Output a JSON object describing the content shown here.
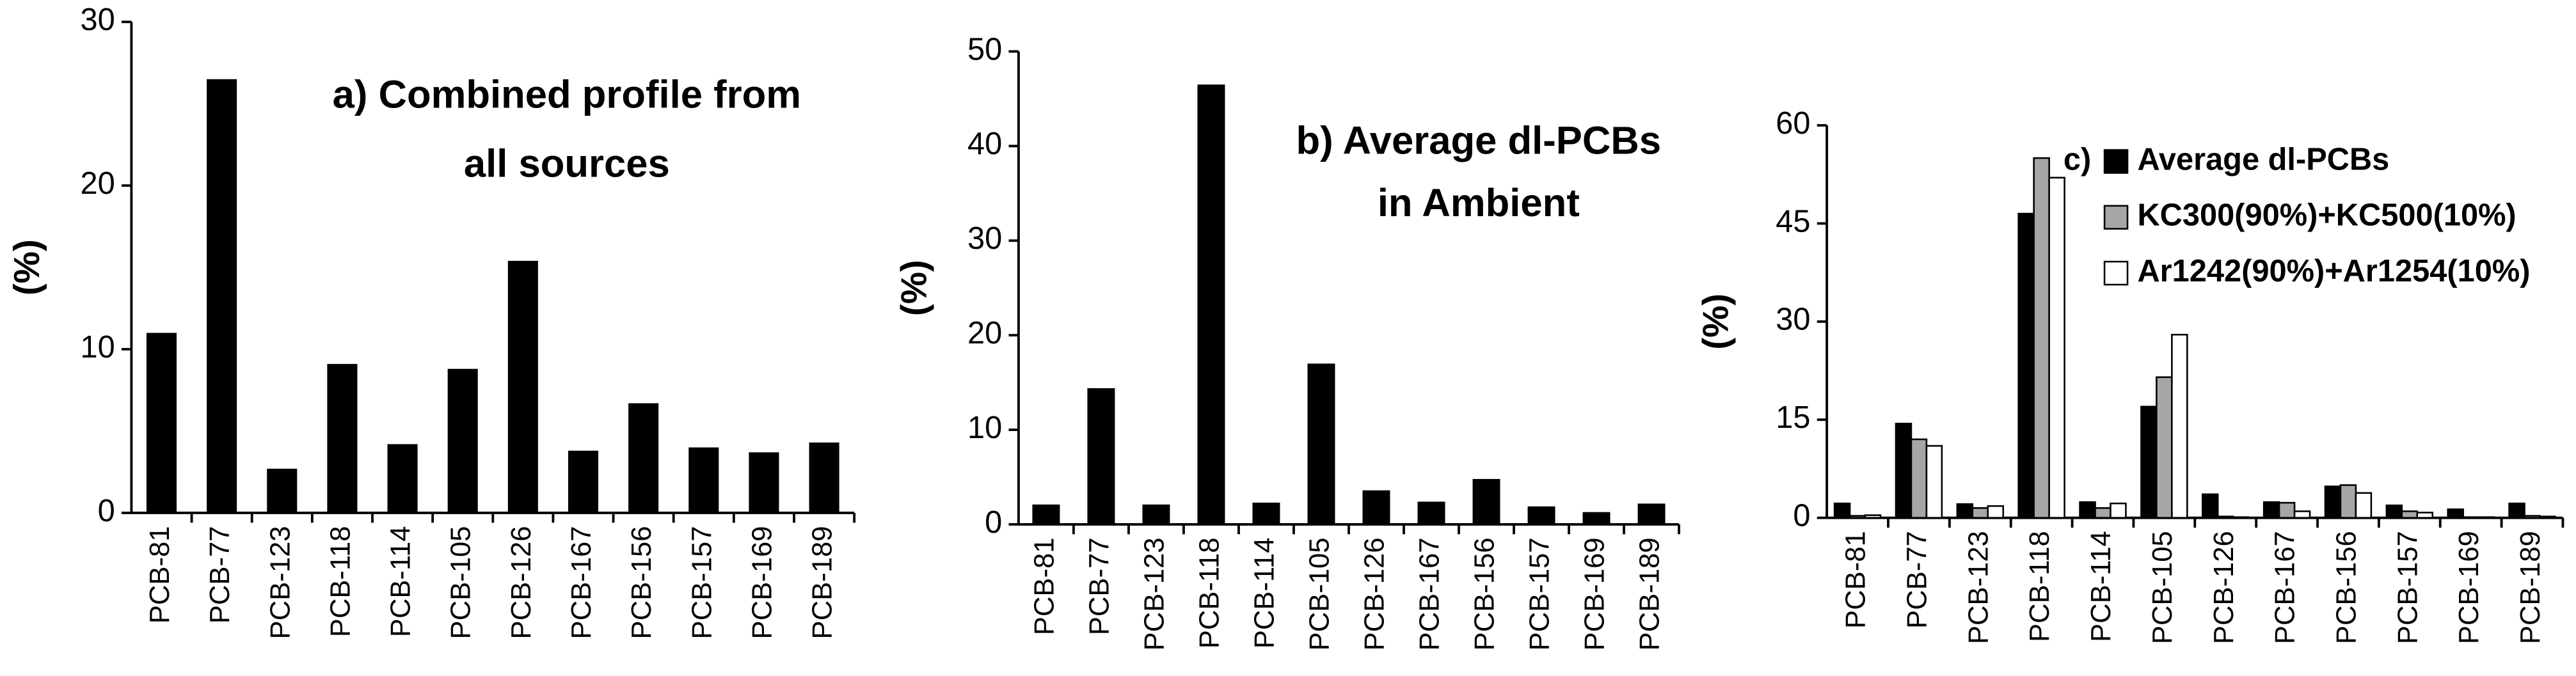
{
  "chart_data": [
    {
      "type": "bar",
      "title": [
        "a) Combined profile from",
        "all sources"
      ],
      "y_label": "(%)",
      "categories": [
        "PCB-81",
        "PCB-77",
        "PCB-123",
        "PCB-118",
        "PCB-114",
        "PCB-105",
        "PCB-126",
        "PCB-167",
        "PCB-156",
        "PCB-157",
        "PCB-169",
        "PCB-189"
      ],
      "values": [
        11,
        26.5,
        2.7,
        9.1,
        4.2,
        8.8,
        15.4,
        3.8,
        6.7,
        4.0,
        3.7,
        4.3
      ],
      "color": "#000000",
      "ylim": [
        0,
        30
      ],
      "yticks": [
        0,
        10,
        20,
        30
      ],
      "grid": false
    },
    {
      "type": "bar",
      "title": [
        "b) Average dl-PCBs",
        "in Ambient"
      ],
      "y_label": "(%)",
      "categories": [
        "PCB-81",
        "PCB-77",
        "PCB-123",
        "PCB-118",
        "PCB-114",
        "PCB-105",
        "PCB-126",
        "PCB-167",
        "PCB-156",
        "PCB-157",
        "PCB-169",
        "PCB-189"
      ],
      "values": [
        2.1,
        14.4,
        2.1,
        46.5,
        2.3,
        17,
        3.6,
        2.4,
        4.8,
        1.9,
        1.3,
        2.2
      ],
      "color": "#000000",
      "ylim": [
        0,
        50
      ],
      "yticks": [
        0,
        10,
        20,
        30,
        40,
        50
      ],
      "grid": false
    },
    {
      "type": "grouped_bar",
      "title": [
        "c)"
      ],
      "y_label": "(%)",
      "categories": [
        "PCB-81",
        "PCB-77",
        "PCB-123",
        "PCB-118",
        "PCB-114",
        "PCB-105",
        "PCB-126",
        "PCB-167",
        "PCB-156",
        "PCB-157",
        "PCB-169",
        "PCB-189"
      ],
      "series": [
        {
          "name": "Average dl-PCBs",
          "color": "#000000",
          "values": [
            2.2,
            14.4,
            2.1,
            46.5,
            2.4,
            17,
            3.6,
            2.4,
            4.8,
            1.9,
            1.3,
            2.2
          ]
        },
        {
          "name": "KC300(90%)+KC500(10%)",
          "color": "#a6a6a6",
          "values": [
            0.3,
            12,
            1.5,
            55,
            1.5,
            21.5,
            0.2,
            2.3,
            5,
            1,
            0.1,
            0.3
          ]
        },
        {
          "name": "Ar1242(90%)+Ar1254(10%)",
          "color": "#ffffff",
          "values": [
            0.4,
            11,
            1.8,
            52,
            2.2,
            28,
            0.1,
            1,
            3.8,
            0.8,
            0.1,
            0.2
          ]
        }
      ],
      "ylim": [
        0,
        60
      ],
      "yticks": [
        0,
        15,
        30,
        45,
        60
      ],
      "grid": false
    }
  ]
}
